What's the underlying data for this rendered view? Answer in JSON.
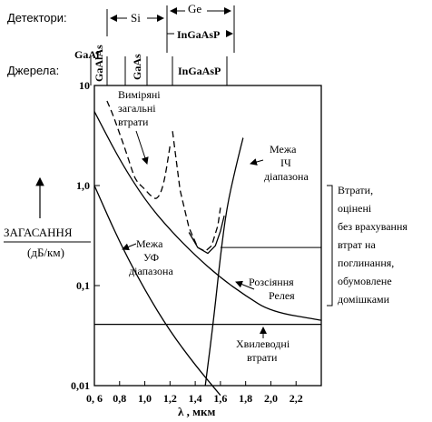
{
  "header": {
    "detectors_label": "Детектори:",
    "sources_label": "Джерела:",
    "det_si": "Si",
    "det_ge": "Ge",
    "det_ingaasp": "InGaAsP",
    "src_gaal": "GaAl",
    "src_gaalas": "GaAlAs",
    "src_gaas": "GaAs",
    "src_ingaasp": "InGaAsP"
  },
  "axes": {
    "ylabel_main": "ЗАГАСАННЯ",
    "ylabel_unit": "(дБ/км)",
    "xlabel": "λ , мкм",
    "y_ticks": [
      "10",
      "1,0",
      "0,1",
      "0,01"
    ],
    "x_ticks": [
      "0, 6",
      "0,8",
      "1,0",
      "1,2",
      "1,4",
      "1,6",
      "1,8",
      "2,0",
      "2,2"
    ]
  },
  "annotations": {
    "measured": [
      "Виміряні",
      "загальні",
      "втрати"
    ],
    "ir_limit": [
      "Межа",
      "ІЧ",
      "діапазона"
    ],
    "uv_limit": [
      "Межа",
      "УФ",
      "діапазона"
    ],
    "rayleigh": [
      "Розсіяння",
      "Релея"
    ],
    "waveguide": [
      "Хвилеводні",
      "втрати"
    ],
    "side_note": [
      "Втрати,",
      "оцінені",
      "без врахування",
      "втрат на",
      "поглинання,",
      "обумовлене",
      "домішками"
    ]
  },
  "chart_data": {
    "type": "line",
    "x_scale": "linear",
    "y_scale": "log",
    "xlim": [
      0.6,
      2.4
    ],
    "ylim": [
      0.01,
      10
    ],
    "xlabel": "λ , мкм",
    "ylabel": "ЗАГАСАННЯ (дБ/км)",
    "series": [
      {
        "name": "Виміряні загальні втрати",
        "style": "dashed",
        "x": [
          0.7,
          0.75,
          0.8,
          0.85,
          0.9,
          0.92,
          0.95,
          1.0,
          1.05,
          1.1,
          1.15,
          1.2
        ],
        "y": [
          7.0,
          5.0,
          3.3,
          2.2,
          1.4,
          1.2,
          1.05,
          0.92,
          0.78,
          0.72,
          1.0,
          2.5
        ]
      },
      {
        "name": "Межа УФ діапазона",
        "style": "solid",
        "x": [
          0.6,
          0.8,
          1.0,
          1.2,
          1.4,
          1.6
        ],
        "y": [
          1.0,
          0.27,
          0.09,
          0.035,
          0.016,
          0.008
        ]
      },
      {
        "name": "Розсіяння Релея",
        "style": "solid",
        "x": [
          0.6,
          0.8,
          1.0,
          1.2,
          1.4,
          1.6,
          1.8,
          2.0,
          2.4
        ],
        "y": [
          5.5,
          1.8,
          0.72,
          0.36,
          0.2,
          0.12,
          0.079,
          0.055,
          0.045
        ]
      },
      {
        "name": "Межа ІЧ діапазона",
        "style": "solid",
        "x": [
          1.48,
          1.55,
          1.6,
          1.65,
          1.72,
          1.78
        ],
        "y": [
          0.01,
          0.05,
          0.2,
          0.6,
          1.5,
          3.0
        ]
      },
      {
        "name": "Хвилеводні втрати",
        "style": "solid",
        "x": [
          0.6,
          2.4
        ],
        "y": [
          0.041,
          0.041
        ]
      }
    ]
  }
}
